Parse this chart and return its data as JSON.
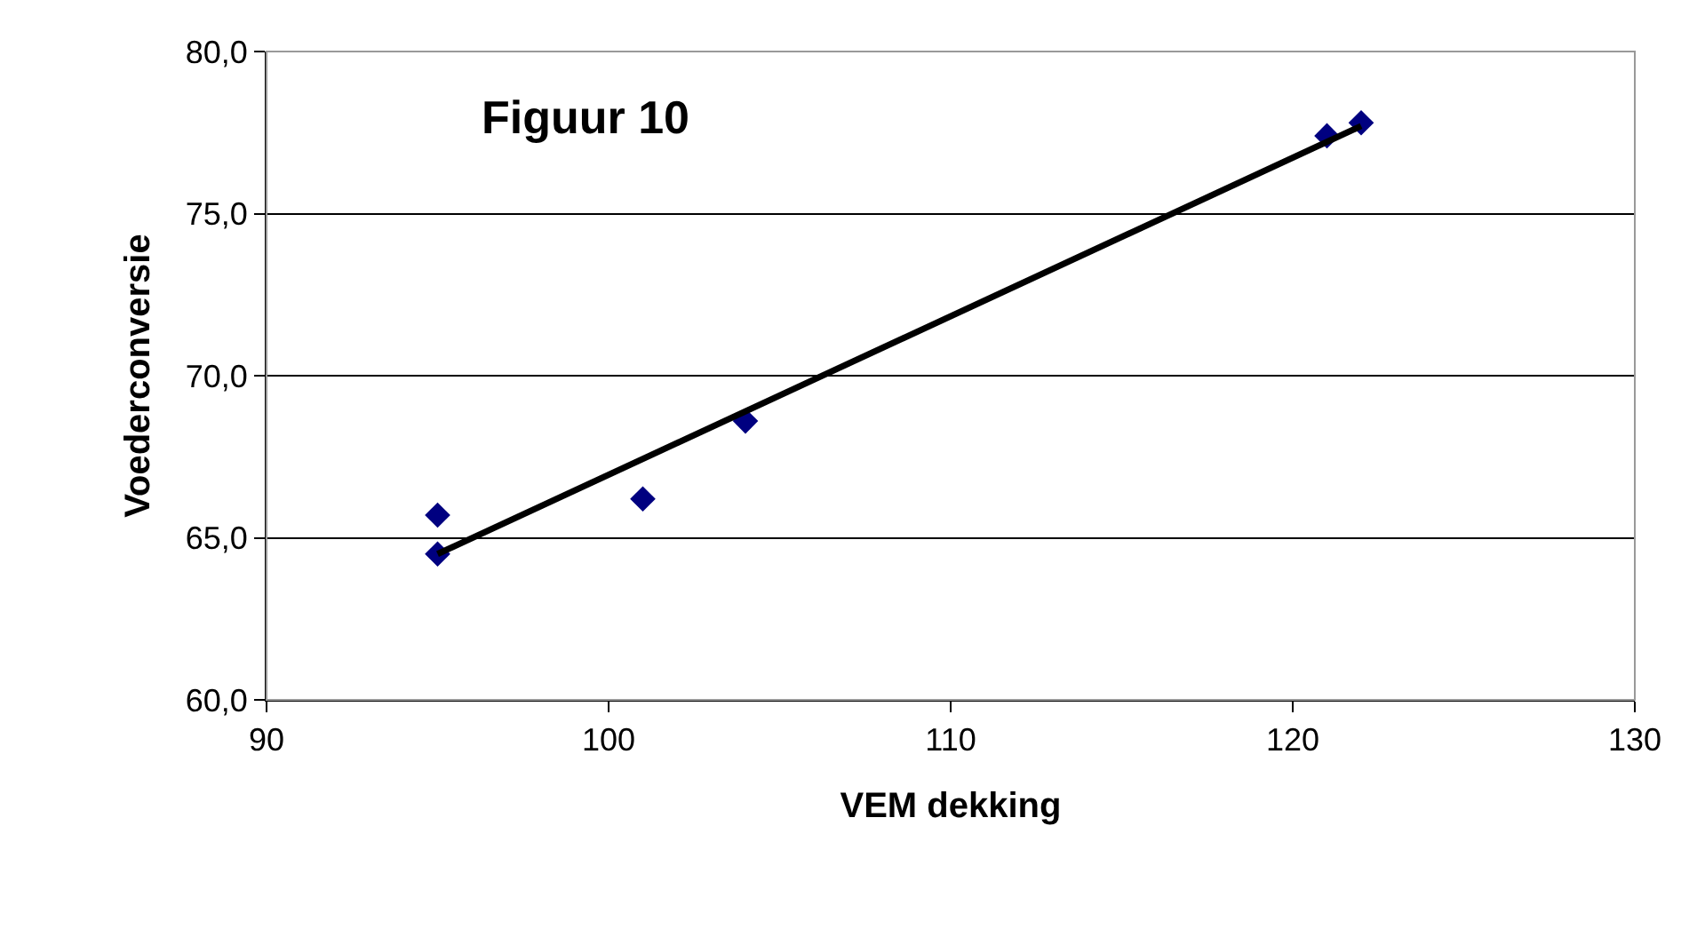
{
  "chart_data": {
    "type": "scatter",
    "title": "Figuur 10",
    "xlabel": "VEM dekking",
    "ylabel": "Voederconversie",
    "marker": "diamond",
    "grid": "y",
    "legend": false,
    "xlim": [
      90,
      130
    ],
    "xticks": [
      90,
      100,
      110,
      120,
      130
    ],
    "ylim": [
      60,
      80
    ],
    "yticks": [
      {
        "value": 60,
        "label": "60,0"
      },
      {
        "value": 65,
        "label": "65,0"
      },
      {
        "value": 70,
        "label": "70,0"
      },
      {
        "value": 75,
        "label": "75,0"
      },
      {
        "value": 80,
        "label": "80,0"
      }
    ],
    "series": [
      {
        "color": "#000080",
        "x": [
          95,
          95,
          101,
          104,
          121,
          122
        ],
        "values": [
          65.7,
          64.5,
          66.2,
          68.6,
          77.4,
          77.8
        ]
      },
      {
        "type": "line",
        "marker": "none",
        "color": "#000000",
        "x": [
          95,
          122
        ],
        "values": [
          64.5,
          77.7
        ]
      }
    ]
  }
}
